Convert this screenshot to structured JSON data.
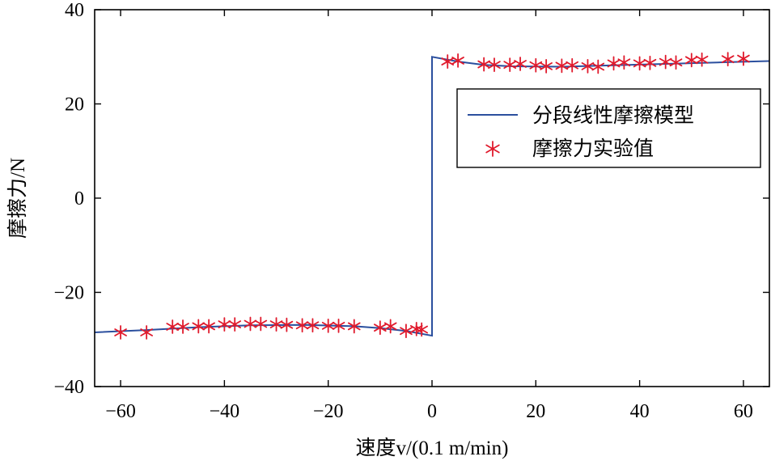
{
  "chart_data": {
    "type": "line",
    "title": "",
    "xlabel": "速度v/(0.1 m/min)",
    "ylabel": "摩擦力/N",
    "xlim": [
      -65,
      65
    ],
    "ylim": [
      -40,
      40
    ],
    "x_ticks": [
      -60,
      -40,
      -20,
      0,
      20,
      40,
      60
    ],
    "y_ticks": [
      -40,
      -20,
      0,
      20,
      40
    ],
    "x_tick_labels": [
      "−60",
      "−40",
      "−20",
      "0",
      "20",
      "40",
      "60"
    ],
    "y_tick_labels": [
      "−40",
      "−20",
      "0",
      "20",
      "40"
    ],
    "grid": false,
    "legend_position": "right",
    "series": [
      {
        "name": "分段线性摩擦模型",
        "kind": "line",
        "color": "#2b4f9e",
        "points": [
          [
            -65,
            -28.5
          ],
          [
            -55,
            -28.0
          ],
          [
            -45,
            -27.4
          ],
          [
            -35,
            -27.0
          ],
          [
            -25,
            -26.9
          ],
          [
            -15,
            -27.2
          ],
          [
            -10,
            -27.6
          ],
          [
            -5,
            -28.2
          ],
          [
            0,
            -29.2
          ],
          [
            0,
            30.0
          ],
          [
            5,
            29.0
          ],
          [
            10,
            28.3
          ],
          [
            15,
            28.0
          ],
          [
            25,
            27.9
          ],
          [
            35,
            28.2
          ],
          [
            45,
            28.5
          ],
          [
            55,
            28.8
          ],
          [
            65,
            29.1
          ]
        ]
      },
      {
        "name": "摩擦力实验值",
        "kind": "scatter",
        "marker": "asterisk",
        "color": "#e01a2c",
        "points": [
          [
            -60,
            -28.5
          ],
          [
            -55,
            -28.5
          ],
          [
            -50,
            -27.3
          ],
          [
            -48,
            -27.3
          ],
          [
            -45,
            -27.2
          ],
          [
            -43,
            -27.2
          ],
          [
            -40,
            -26.8
          ],
          [
            -38,
            -26.8
          ],
          [
            -35,
            -26.7
          ],
          [
            -33,
            -26.7
          ],
          [
            -30,
            -26.8
          ],
          [
            -28,
            -26.9
          ],
          [
            -25,
            -27.0
          ],
          [
            -23,
            -27.0
          ],
          [
            -20,
            -27.1
          ],
          [
            -18,
            -27.1
          ],
          [
            -15,
            -27.2
          ],
          [
            -10,
            -27.5
          ],
          [
            -8,
            -27.2
          ],
          [
            -5,
            -28.2
          ],
          [
            -3,
            -27.8
          ],
          [
            -2,
            -27.9
          ],
          [
            3,
            29.0
          ],
          [
            5,
            29.2
          ],
          [
            10,
            28.4
          ],
          [
            12,
            28.3
          ],
          [
            15,
            28.3
          ],
          [
            17,
            28.5
          ],
          [
            20,
            28.2
          ],
          [
            22,
            28.0
          ],
          [
            25,
            28.1
          ],
          [
            27,
            28.2
          ],
          [
            30,
            28.0
          ],
          [
            32,
            27.9
          ],
          [
            35,
            28.6
          ],
          [
            37,
            28.8
          ],
          [
            40,
            28.6
          ],
          [
            42,
            28.7
          ],
          [
            45,
            28.9
          ],
          [
            47,
            28.8
          ],
          [
            50,
            29.3
          ],
          [
            52,
            29.4
          ],
          [
            57,
            29.5
          ],
          [
            60,
            29.6
          ]
        ]
      }
    ]
  }
}
